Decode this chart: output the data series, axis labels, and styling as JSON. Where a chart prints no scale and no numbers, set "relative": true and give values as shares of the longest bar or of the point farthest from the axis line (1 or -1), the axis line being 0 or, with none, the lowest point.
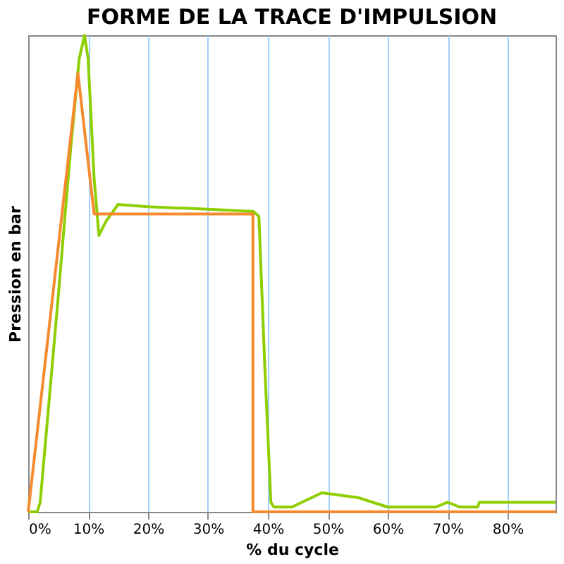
{
  "chart_data": {
    "type": "line",
    "title": "FORME DE LA TRACE D'IMPULSION",
    "xlabel": "% du cycle",
    "ylabel": "Pression en bar",
    "relative": true,
    "grid": "x",
    "line_style": "solid",
    "marker": "none",
    "xlim": [
      0,
      88
    ],
    "xticks": [
      {
        "value": 0,
        "label": "0%"
      },
      {
        "value": 10,
        "label": "10%"
      },
      {
        "value": 20,
        "label": "20%"
      },
      {
        "value": 30,
        "label": "30%"
      },
      {
        "value": 40,
        "label": "40%"
      },
      {
        "value": 50,
        "label": "50%"
      },
      {
        "value": 60,
        "label": "60%"
      },
      {
        "value": 70,
        "label": "70%"
      },
      {
        "value": 80,
        "label": "80%"
      }
    ],
    "series": [
      {
        "color": "#8fce00",
        "x": [
          0,
          1.5,
          2,
          5,
          7,
          8.5,
          9.4,
          10,
          11,
          11.8,
          13,
          15,
          20,
          30,
          37.6,
          38.5,
          39.5,
          40.5,
          41,
          44,
          49,
          55,
          60,
          68,
          70,
          72,
          75,
          75.3,
          88
        ],
        "values": [
          0,
          0,
          0.02,
          0.45,
          0.75,
          0.95,
          1.0,
          0.95,
          0.7,
          0.58,
          0.61,
          0.645,
          0.64,
          0.635,
          0.63,
          0.62,
          0.3,
          0.02,
          0.01,
          0.01,
          0.04,
          0.03,
          0.01,
          0.01,
          0.02,
          0.01,
          0.01,
          0.02,
          0.02
        ]
      },
      {
        "color": "#f58a2e",
        "x": [
          0,
          8.3,
          11,
          37.5,
          37.5,
          88
        ],
        "values": [
          0,
          0.92,
          0.625,
          0.625,
          0,
          0
        ]
      }
    ]
  }
}
